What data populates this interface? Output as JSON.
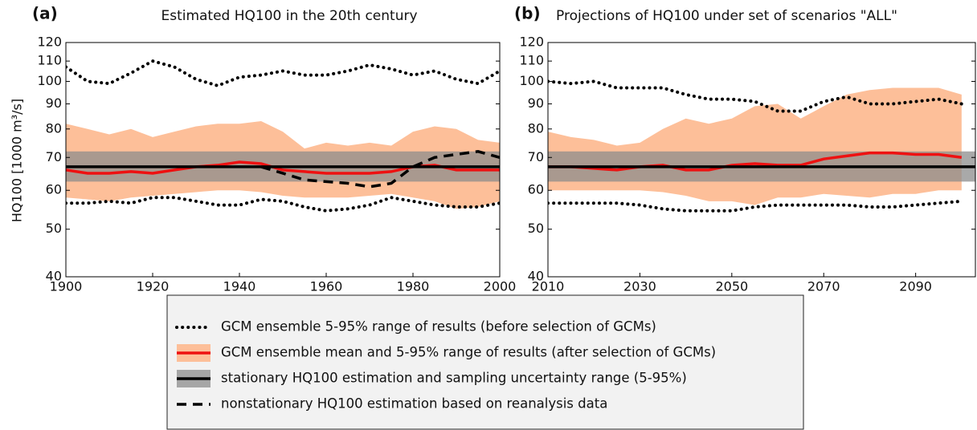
{
  "chart_data": [
    {
      "type": "line",
      "label": "(a)",
      "title": "Estimated HQ100 in the 20th century",
      "ylabel": "HQ100 [1000 m³/s]",
      "ylog": true,
      "ylim": [
        40,
        120
      ],
      "yticks": [
        40,
        50,
        60,
        70,
        80,
        90,
        100,
        110,
        120
      ],
      "xlim": [
        1900,
        2000
      ],
      "xticks": [
        1900,
        1920,
        1940,
        1960,
        1980,
        2000
      ],
      "x": [
        1900,
        1905,
        1910,
        1915,
        1920,
        1925,
        1930,
        1935,
        1940,
        1945,
        1950,
        1955,
        1960,
        1965,
        1970,
        1975,
        1980,
        1985,
        1990,
        1995,
        2000
      ],
      "series": [
        {
          "name": "GCM ensemble 5-95% range of results (before selection of GCMs)",
          "style": "dotted",
          "color": "#000000",
          "upper": [
            107,
            100,
            99,
            104,
            110,
            107,
            101,
            98,
            102,
            103,
            105,
            103,
            103,
            105,
            108,
            106,
            103,
            105,
            101,
            99,
            105
          ],
          "lower": [
            56.5,
            56.5,
            57,
            56.5,
            58,
            58,
            57,
            56,
            56,
            57.5,
            57,
            55.5,
            54.5,
            55,
            56,
            58,
            57,
            56,
            55.5,
            55.5,
            56.5
          ]
        },
        {
          "name": "GCM ensemble mean and 5-95% range of results (after selection of GCMs)",
          "style": "solid",
          "color": "#ee1111",
          "band_color": "#fdbf99",
          "upper": [
            82,
            80,
            78,
            80,
            77,
            79,
            81,
            82,
            82,
            83,
            79,
            73,
            75,
            74,
            75,
            74,
            79,
            81,
            80,
            76,
            75
          ],
          "lower": [
            58,
            57.5,
            57,
            58,
            58.5,
            59,
            59.5,
            60,
            60,
            59.5,
            58.5,
            58,
            58,
            58,
            58.5,
            59,
            58,
            57,
            55,
            55.5,
            57
          ],
          "values": [
            66,
            65,
            65,
            65.5,
            65,
            66,
            67,
            67.5,
            68.5,
            68,
            66,
            65.5,
            65,
            65,
            65,
            65.5,
            67,
            67.5,
            66,
            66,
            66
          ]
        },
        {
          "name": "stationary HQ100 estimation and sampling uncertainty range (5-95%)",
          "style": "solid",
          "color": "#000000",
          "band_color": "#8c8c8c",
          "x": [
            1900,
            2000
          ],
          "upper": [
            72,
            72
          ],
          "lower": [
            62.5,
            62.5
          ],
          "values": [
            67,
            67
          ]
        },
        {
          "name": "nonstationary HQ100 estimation based on reanalysis data",
          "style": "dashed",
          "color": "#000000",
          "values": [
            null,
            null,
            null,
            null,
            null,
            null,
            null,
            null,
            null,
            67,
            65,
            63,
            62.5,
            62,
            61,
            62,
            67,
            70,
            71,
            72,
            70
          ]
        }
      ]
    },
    {
      "type": "line",
      "label": "(b)",
      "title": "Projections of HQ100 under set of scenarios \"ALL\"",
      "ylog": true,
      "ylim": [
        40,
        120
      ],
      "yticks": [
        40,
        50,
        60,
        70,
        80,
        90,
        100,
        110,
        120
      ],
      "xlim": [
        2010,
        2103
      ],
      "xticks": [
        2010,
        2030,
        2050,
        2070,
        2090
      ],
      "x": [
        2010,
        2015,
        2020,
        2025,
        2030,
        2035,
        2040,
        2045,
        2050,
        2055,
        2060,
        2065,
        2070,
        2075,
        2080,
        2085,
        2090,
        2095,
        2100
      ],
      "series": [
        {
          "style": "dotted",
          "color": "#000000",
          "upper": [
            100,
            99,
            100,
            97,
            97,
            97,
            94,
            92,
            92,
            91,
            87,
            87,
            91,
            93,
            90,
            90,
            91,
            92,
            90
          ],
          "lower": [
            56.5,
            56.5,
            56.5,
            56.5,
            56,
            55,
            54.5,
            54.5,
            54.5,
            55.5,
            56,
            56,
            56,
            56,
            55.5,
            55.5,
            56,
            56.5,
            57
          ]
        },
        {
          "style": "solid",
          "color": "#ee1111",
          "band_color": "#fdbf99",
          "upper": [
            79,
            77,
            76,
            74,
            75,
            80,
            84,
            82,
            84,
            89,
            90,
            84,
            89,
            94,
            96,
            97,
            97,
            97,
            94
          ],
          "lower": [
            60,
            60,
            60,
            60,
            60,
            59.5,
            58.5,
            57,
            57,
            56,
            58,
            58,
            59,
            58.5,
            58,
            59,
            59,
            60,
            60
          ],
          "values": [
            67,
            67,
            66.5,
            66,
            67,
            67.5,
            66,
            66,
            67.5,
            68,
            67.5,
            67.5,
            69.5,
            70.5,
            71.5,
            71.5,
            71,
            71,
            70
          ]
        },
        {
          "style": "solid",
          "color": "#000000",
          "band_color": "#8c8c8c",
          "x": [
            2010,
            2103
          ],
          "upper": [
            72,
            72
          ],
          "lower": [
            62.5,
            62.5
          ],
          "values": [
            67,
            67
          ]
        }
      ]
    }
  ]
}
